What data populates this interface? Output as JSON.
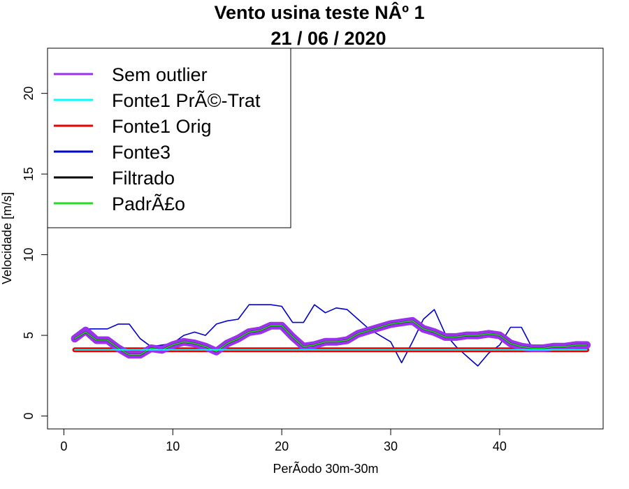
{
  "chart_data": {
    "type": "line",
    "title": "Vento usina teste NÂº 1",
    "subtitle": "21 / 06 / 2020",
    "xlabel": "PerÃ­odo 30m-30m",
    "ylabel": "Velocidade [m/s]",
    "xlim": [
      -1.5,
      49.5
    ],
    "ylim": [
      -0.8,
      22.8
    ],
    "xticks": [
      0,
      10,
      20,
      30,
      40
    ],
    "yticks": [
      0,
      5,
      10,
      15,
      20
    ],
    "legend_position": "top-left",
    "x": [
      1,
      2,
      3,
      4,
      5,
      6,
      7,
      8,
      9,
      10,
      11,
      12,
      13,
      14,
      15,
      16,
      17,
      18,
      19,
      20,
      21,
      22,
      23,
      24,
      25,
      26,
      27,
      28,
      29,
      30,
      31,
      32,
      33,
      34,
      35,
      36,
      37,
      38,
      39,
      40,
      41,
      42,
      43,
      44,
      45,
      46,
      47,
      48
    ],
    "series": [
      {
        "name": "Sem outlier",
        "color": "#9b30ee",
        "width": 11,
        "values": [
          4.8,
          5.3,
          4.7,
          4.7,
          4.2,
          3.8,
          3.8,
          4.2,
          4.1,
          4.4,
          4.6,
          4.5,
          4.3,
          4.0,
          4.5,
          4.8,
          5.2,
          5.3,
          5.6,
          5.6,
          4.9,
          4.3,
          4.4,
          4.6,
          4.6,
          4.7,
          5.1,
          5.3,
          5.5,
          5.7,
          5.8,
          5.9,
          5.4,
          5.2,
          4.9,
          4.9,
          5.0,
          5.0,
          5.1,
          5.0,
          4.5,
          4.3,
          4.2,
          4.2,
          4.3,
          4.3,
          4.4,
          4.4
        ]
      },
      {
        "name": "Fonte1 PrÃ©-Trat",
        "color": "#00ffff",
        "width": 2,
        "values": [
          4.1,
          4.1,
          4.1,
          4.1,
          4.1,
          4.1,
          4.1,
          4.1,
          4.1,
          4.1,
          4.1,
          4.1,
          4.1,
          4.1,
          4.1,
          4.1,
          4.1,
          4.1,
          4.1,
          4.1,
          4.1,
          4.1,
          4.1,
          4.1,
          4.1,
          4.1,
          4.1,
          4.1,
          4.1,
          4.1,
          4.1,
          4.1,
          4.1,
          4.1,
          4.1,
          4.1,
          4.1,
          4.1,
          4.1,
          4.1,
          4.1,
          4.1,
          4.1,
          4.1,
          4.1,
          4.1,
          4.1,
          4.1
        ]
      },
      {
        "name": "Fonte1 Orig",
        "color": "#ee0000",
        "width": 7,
        "values": [
          4.1,
          4.1,
          4.1,
          4.1,
          4.1,
          4.1,
          4.1,
          4.1,
          4.1,
          4.1,
          4.1,
          4.1,
          4.1,
          4.1,
          4.1,
          4.1,
          4.1,
          4.1,
          4.1,
          4.1,
          4.1,
          4.1,
          4.1,
          4.1,
          4.1,
          4.1,
          4.1,
          4.1,
          4.1,
          4.1,
          4.1,
          4.1,
          4.1,
          4.1,
          4.1,
          4.1,
          4.1,
          4.1,
          4.1,
          4.1,
          4.1,
          4.1,
          4.1,
          4.1,
          4.1,
          4.1,
          4.1,
          4.1
        ]
      },
      {
        "name": "Fonte3",
        "color": "#0000cd",
        "width": 1.6,
        "values": [
          4.9,
          5.4,
          5.4,
          5.4,
          5.7,
          5.7,
          4.8,
          4.3,
          4.4,
          4.5,
          5.0,
          5.2,
          5.0,
          5.7,
          5.9,
          6.0,
          6.9,
          6.9,
          6.9,
          6.8,
          5.8,
          5.8,
          6.9,
          6.4,
          6.7,
          6.6,
          6.0,
          5.4,
          5.0,
          4.6,
          3.3,
          4.6,
          6.0,
          6.6,
          5.1,
          4.3,
          3.7,
          3.1,
          3.9,
          4.4,
          5.5,
          5.5,
          4.2,
          4.2,
          4.3,
          4.3,
          4.4,
          4.4
        ]
      },
      {
        "name": "Filtrado",
        "color": "#000000",
        "width": 2.2,
        "values": [
          4.8,
          5.2,
          4.7,
          4.7,
          4.2,
          3.8,
          3.8,
          4.2,
          4.1,
          4.4,
          4.6,
          4.5,
          4.3,
          4.0,
          4.5,
          4.8,
          5.2,
          5.3,
          5.6,
          5.6,
          4.9,
          4.3,
          4.4,
          4.6,
          4.6,
          4.7,
          5.1,
          5.3,
          5.5,
          5.7,
          5.8,
          5.9,
          5.4,
          5.2,
          4.9,
          4.9,
          5.0,
          5.0,
          5.1,
          5.0,
          4.5,
          4.3,
          4.2,
          4.2,
          4.3,
          4.3,
          4.4,
          4.4
        ]
      },
      {
        "name": "PadrÃ£o",
        "color": "#22dd22",
        "width": 1.6,
        "values": [
          4.8,
          5.2,
          4.7,
          4.7,
          4.2,
          3.8,
          3.8,
          4.2,
          4.1,
          4.4,
          4.6,
          4.5,
          4.3,
          4.0,
          4.5,
          4.8,
          5.2,
          5.3,
          5.6,
          5.6,
          4.9,
          4.3,
          4.4,
          4.6,
          4.6,
          4.7,
          5.1,
          5.3,
          5.5,
          5.7,
          5.8,
          5.9,
          5.4,
          5.2,
          4.9,
          4.9,
          5.0,
          5.0,
          5.1,
          5.0,
          4.5,
          4.3,
          4.2,
          4.2,
          4.3,
          4.3,
          4.4,
          4.4
        ]
      }
    ],
    "draw_order": [
      "Fonte3",
      "Fonte1 Orig",
      "Sem outlier",
      "Filtrado",
      "PadrÃ£o",
      "Fonte1 PrÃ©-Trat"
    ]
  }
}
